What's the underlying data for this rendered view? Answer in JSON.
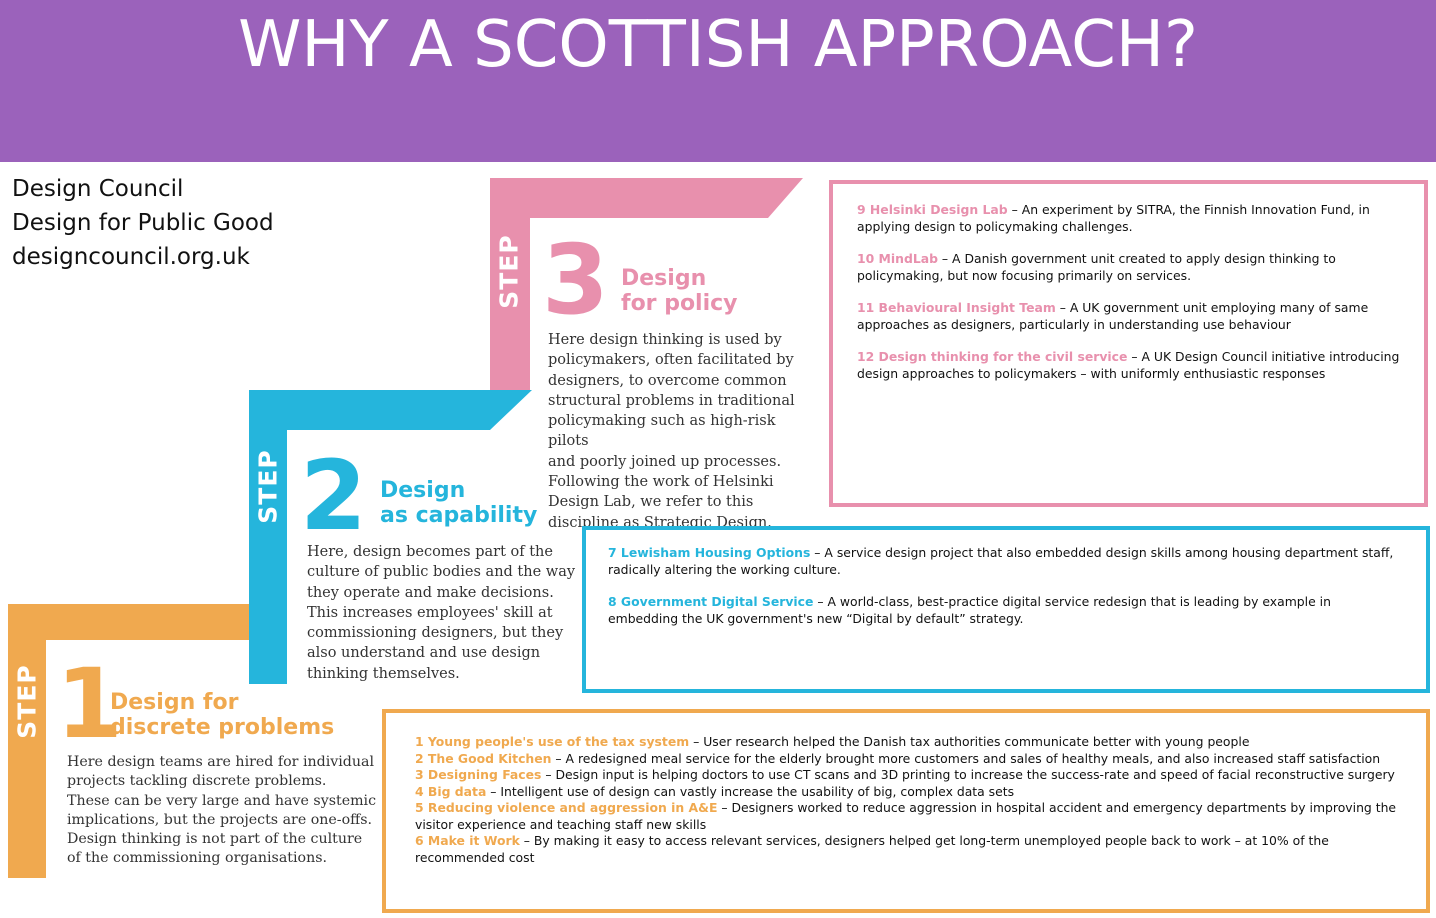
{
  "header": {
    "title": "WHY A SCOTTISH APPROACH?"
  },
  "source": {
    "line1": "Design Council",
    "line2": "Design for Public Good",
    "line3": "designcouncil.org.uk"
  },
  "colors": {
    "purple": "#9b62bb",
    "orange": "#f0a94f",
    "blue": "#25b5dc",
    "pink": "#e890ad"
  },
  "steps": [
    {
      "word": "STEP",
      "number": "1",
      "title_line1": "Design for",
      "title_line2": "discrete problems",
      "description": [
        "Here design teams are hired for individual",
        "projects tackling discrete problems.",
        "These can be very large and have systemic",
        "implications, but the projects are one-offs.",
        "Design thinking is not part of the culture",
        "of the commissioning organisations."
      ]
    },
    {
      "word": "STEP",
      "number": "2",
      "title_line1": "Design",
      "title_line2": "as capability",
      "description": [
        "Here, design becomes part of the",
        "culture of public bodies and the way",
        "they operate and make decisions.",
        "This increases employees' skill at",
        "commissioning designers, but they",
        "also understand and use design",
        "thinking themselves."
      ]
    },
    {
      "word": "STEP",
      "number": "3",
      "title_line1": "Design",
      "title_line2": "for policy",
      "description": [
        "Here design thinking is used by",
        "policymakers, often facilitated by",
        "designers, to overcome common",
        "structural problems in traditional",
        "policymaking such as high-risk pilots",
        "and poorly joined up processes.",
        "Following the work of Helsinki",
        "Design Lab, we refer to this",
        "discipline as Strategic Design."
      ]
    }
  ],
  "boxes": {
    "policy": [
      {
        "highlight": "9 Helsinki Design Lab",
        "text": " – An experiment by SITRA, the Finnish Innovation Fund, in applying design to policymaking challenges."
      },
      {
        "highlight": "10 MindLab",
        "text": " – A Danish government unit created to apply design thinking to policymaking, but now focusing primarily on services."
      },
      {
        "highlight": "11 Behavioural Insight Team",
        "text": " – A UK government unit employing many of same approaches as designers, particularly in understanding use behaviour"
      },
      {
        "highlight": "12 Design thinking for the civil service",
        "text": " – A UK Design Council initiative introducing design approaches to policymakers – with uniformly enthusiastic responses"
      }
    ],
    "capability": [
      {
        "highlight": "7 Lewisham Housing Options",
        "text": " – A service design project that also embedded design skills among housing department staff, radically altering the working culture."
      },
      {
        "highlight": "8 Government Digital Service",
        "text": " – A world-class, best-practice digital service redesign that is leading by example in embedding the UK government's new “Digital by default” strategy."
      }
    ],
    "discrete": [
      {
        "highlight": "1 Young people's use of the tax system",
        "text": " – User research helped the Danish tax authorities communicate better with young people"
      },
      {
        "highlight": "2 The Good Kitchen",
        "text": " – A redesigned meal service for the elderly brought more customers and sales of healthy meals, and also increased staff satisfaction"
      },
      {
        "highlight": "3 Designing Faces",
        "text": " – Design input is helping doctors to use CT scans and 3D printing to increase the success-rate and speed of facial reconstructive surgery"
      },
      {
        "highlight": "4 Big data",
        "text": " – Intelligent use of design can vastly increase the usability of big, complex data sets"
      },
      {
        "highlight": "5 Reducing violence and aggression in A&E",
        "text": " – Designers worked to reduce aggression in hospital accident and emergency departments by improving the visitor experience and teaching staff new skills"
      },
      {
        "highlight": "6 Make it Work",
        "text": " – By making it easy to access relevant services, designers helped get long-term unemployed people back to work – at 10% of the recommended cost"
      }
    ]
  }
}
